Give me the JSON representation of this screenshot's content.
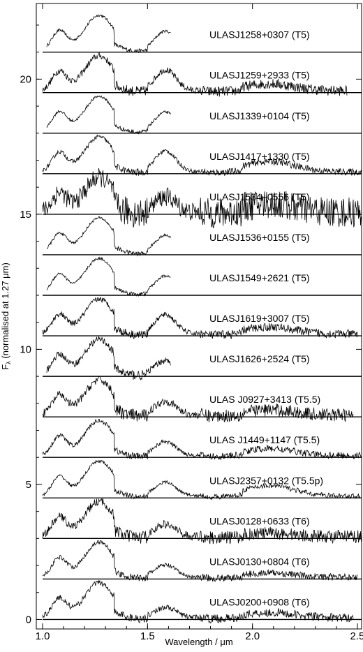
{
  "chart_data": {
    "type": "line",
    "xlabel": "Wavelength / μm",
    "ylabel": "F_λ (normalised at 1.27 μm)",
    "xlim": [
      0.97,
      2.52
    ],
    "ylim": [
      -0.35,
      22.8
    ],
    "x_ticks": [
      1.0,
      1.5,
      2.0,
      2.5
    ],
    "x_tick_labels": [
      "1.0",
      "1.5",
      "2.0",
      "2.5"
    ],
    "y_ticks": [
      0,
      5,
      10,
      15,
      20
    ],
    "y_tick_labels": [
      "0",
      "5",
      "10",
      "15",
      "20"
    ],
    "grid": false,
    "legend": "none",
    "spectra": [
      {
        "label": "ULASJ1258+0307 (T5)",
        "offset": 21.0,
        "x_range": [
          1.02,
          1.61
        ],
        "noise": 0.05,
        "h_amp": 0.55,
        "k_amp": 0.0
      },
      {
        "label": "ULASJ1259+2933 (T5)",
        "offset": 19.5,
        "x_range": [
          1.0,
          2.45
        ],
        "noise": 0.12,
        "h_amp": 0.6,
        "k_amp": 0.2
      },
      {
        "label": "ULASJ1339+0104 (T5)",
        "offset": 18.0,
        "x_range": [
          1.02,
          1.61
        ],
        "noise": 0.05,
        "h_amp": 0.55,
        "k_amp": 0.0
      },
      {
        "label": "ULASJ1417+1330 (T5)",
        "offset": 16.5,
        "x_range": [
          1.0,
          2.52
        ],
        "noise": 0.08,
        "h_amp": 0.6,
        "k_amp": 0.3
      },
      {
        "label": "ULASJ1534+0556 (T5)",
        "offset": 15.0,
        "x_range": [
          1.0,
          2.52
        ],
        "noise": 0.35,
        "h_amp": 0.45,
        "k_amp": 0.25
      },
      {
        "label": "ULASJ1536+0155 (T5)",
        "offset": 13.5,
        "x_range": [
          1.02,
          1.61
        ],
        "noise": 0.05,
        "h_amp": 0.5,
        "k_amp": 0.0
      },
      {
        "label": "ULASJ1549+2621 (T5)",
        "offset": 12.0,
        "x_range": [
          1.02,
          1.61
        ],
        "noise": 0.05,
        "h_amp": 0.5,
        "k_amp": 0.0
      },
      {
        "label": "ULASJ1619+3007 (T5)",
        "offset": 10.5,
        "x_range": [
          1.0,
          2.5
        ],
        "noise": 0.1,
        "h_amp": 0.55,
        "k_amp": 0.2
      },
      {
        "label": "ULASJ1626+2524 (T5)",
        "offset": 9.0,
        "x_range": [
          1.02,
          1.61
        ],
        "noise": 0.12,
        "h_amp": 0.4,
        "k_amp": 0.0
      },
      {
        "label": "ULAS J0927+3413 (T5.5)",
        "offset": 7.5,
        "x_range": [
          1.0,
          2.48
        ],
        "noise": 0.15,
        "h_amp": 0.4,
        "k_amp": 0.15
      },
      {
        "label": "ULAS J1449+1147 (T5.5)",
        "offset": 6.0,
        "x_range": [
          1.0,
          2.52
        ],
        "noise": 0.08,
        "h_amp": 0.4,
        "k_amp": 0.2
      },
      {
        "label": "ULASJ2357+0132 (T5.5p)",
        "offset": 4.5,
        "x_range": [
          1.0,
          2.52
        ],
        "noise": 0.06,
        "h_amp": 0.4,
        "k_amp": 0.3
      },
      {
        "label": "ULASJ0128+0633 (T6)",
        "offset": 3.0,
        "x_range": [
          1.0,
          2.52
        ],
        "noise": 0.15,
        "h_amp": 0.35,
        "k_amp": 0.1
      },
      {
        "label": "ULASJ0130+0804 (T6)",
        "offset": 1.5,
        "x_range": [
          1.0,
          2.5
        ],
        "noise": 0.08,
        "h_amp": 0.35,
        "k_amp": 0.12
      },
      {
        "label": "ULASJ0200+0908 (T6)",
        "offset": 0.0,
        "x_range": [
          1.0,
          2.48
        ],
        "noise": 0.1,
        "h_amp": 0.3,
        "k_amp": 0.15
      }
    ]
  }
}
